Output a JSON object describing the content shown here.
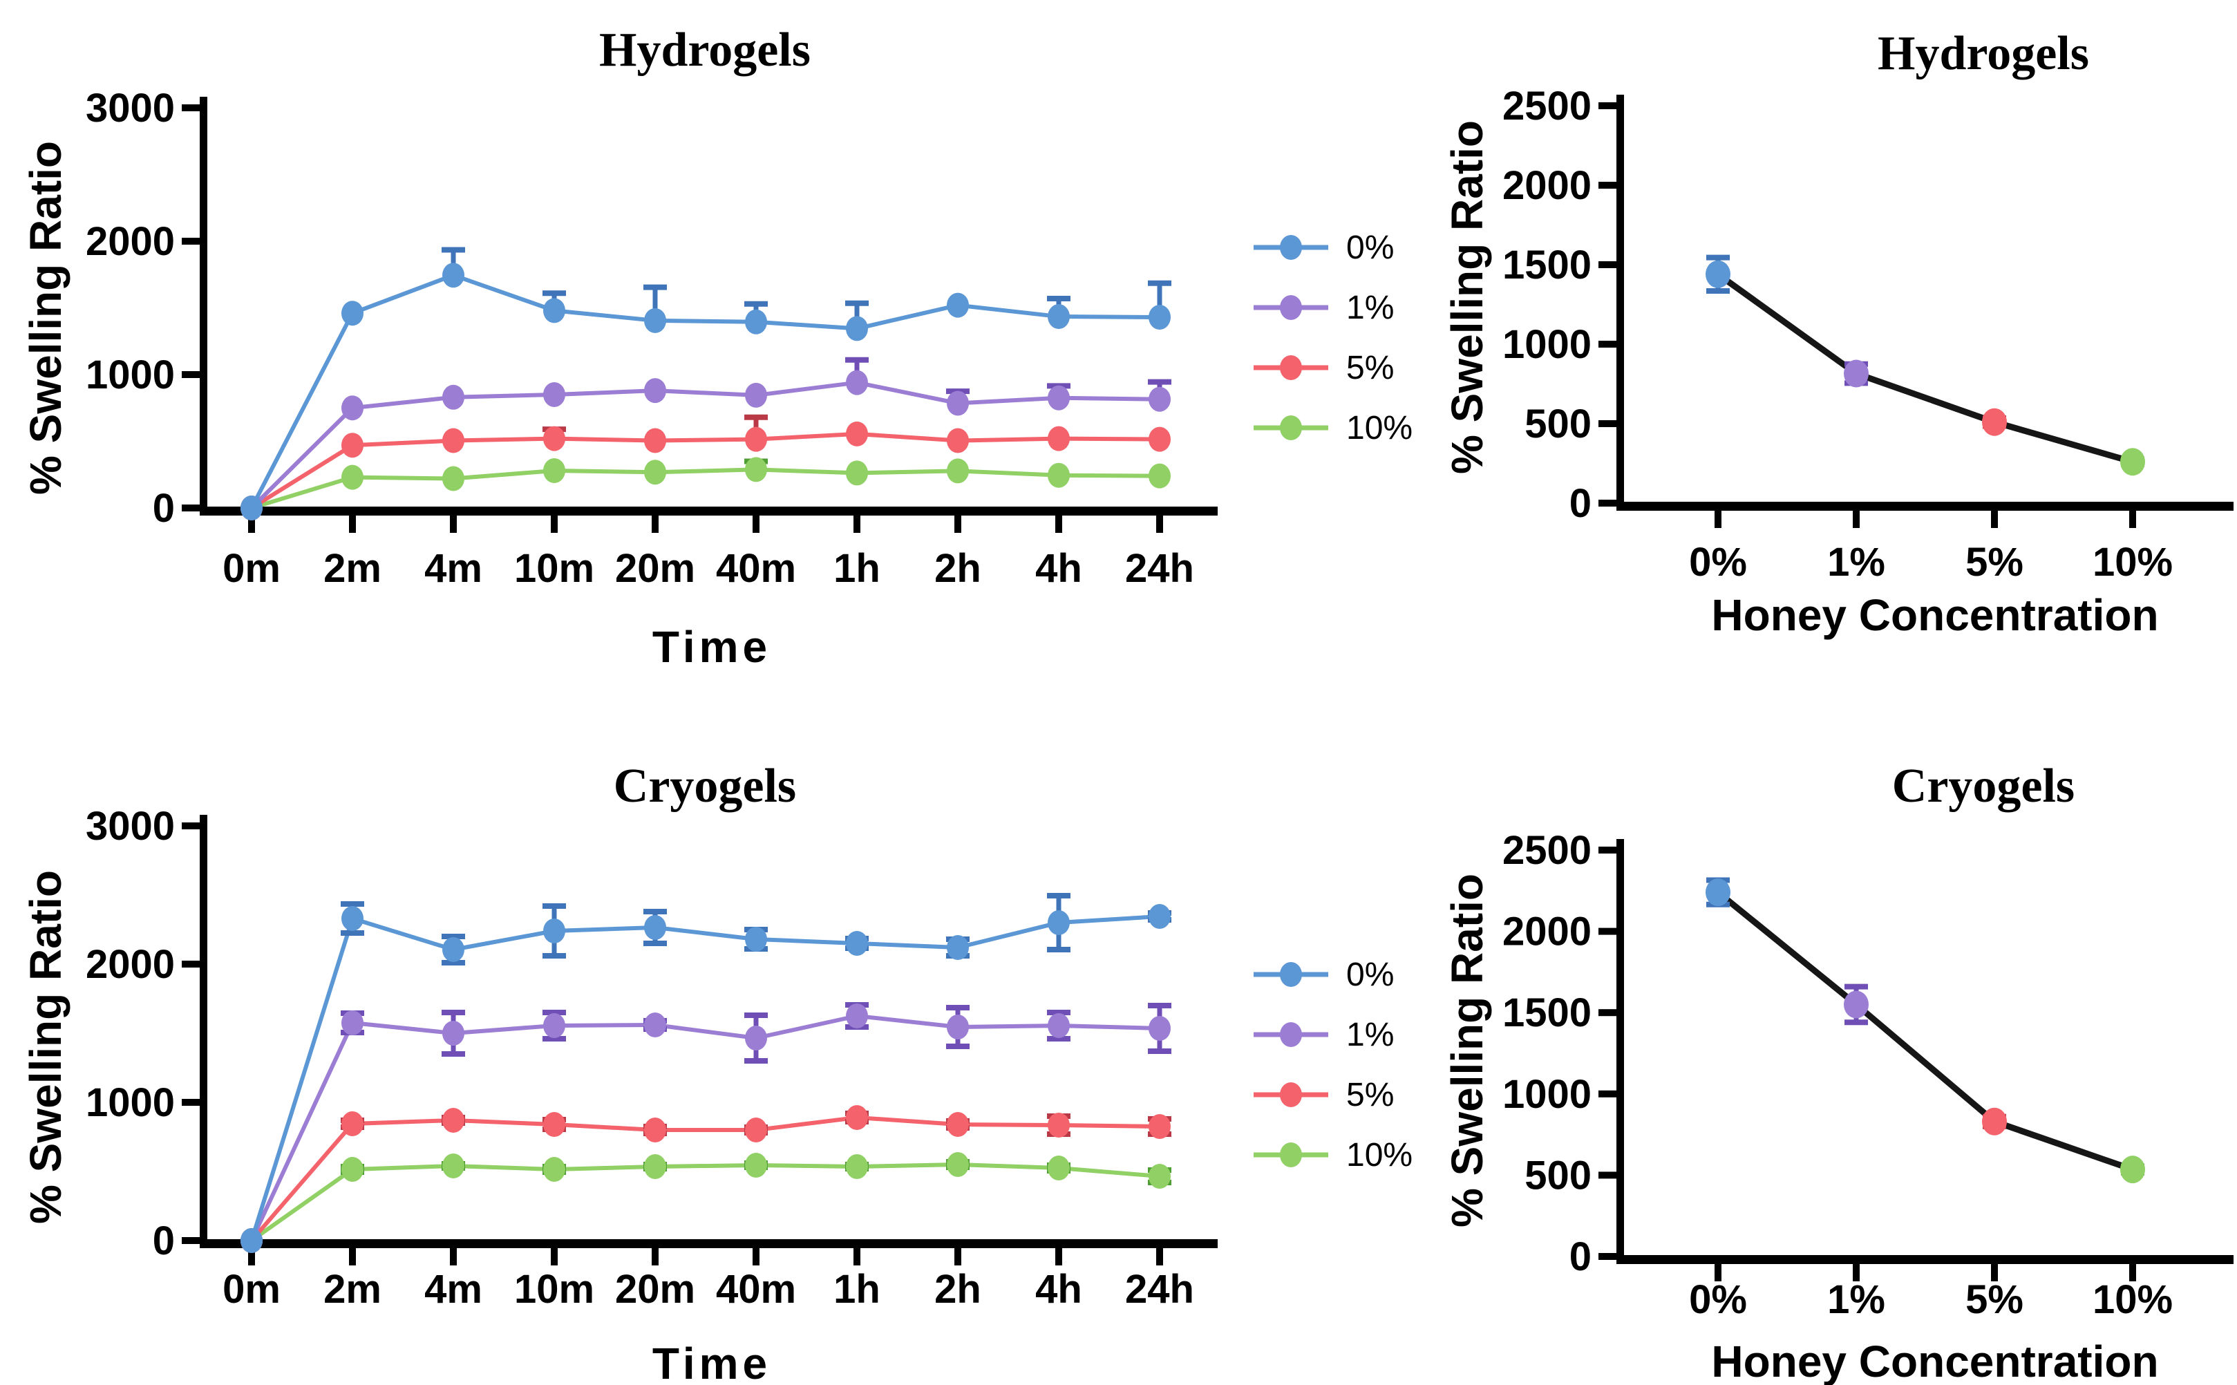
{
  "page": {
    "background": "#ffffff"
  },
  "colors": {
    "series_0pct": "#5B96D5",
    "series_1pct": "#9B7DD4",
    "series_5pct": "#F4626B",
    "series_10pct": "#90D065",
    "axis": "#000000",
    "concentration_line": "#161616"
  },
  "legend": {
    "items": [
      {
        "label": "0%",
        "color": "#5B96D5"
      },
      {
        "label": "1%",
        "color": "#9B7DD4"
      },
      {
        "label": "5%",
        "color": "#F4626B"
      },
      {
        "label": "10%",
        "color": "#90D065"
      }
    ]
  },
  "chart_data": [
    {
      "id": "hydrogels-time",
      "type": "line",
      "title": "Hydrogels",
      "xlabel": "Time",
      "ylabel": "% Swelling Ratio",
      "categories": [
        "0m",
        "2m",
        "4m",
        "10m",
        "20m",
        "40m",
        "1h",
        "2h",
        "4h",
        "24h"
      ],
      "ylim": [
        0,
        3000
      ],
      "yticks": [
        0,
        1000,
        2000,
        3000
      ],
      "grid": false,
      "legend_position": "right",
      "error_dir": "up",
      "series": [
        {
          "name": "0%",
          "color": "#5B96D5",
          "error_color": "#3F74B8",
          "values": [
            0,
            1460,
            1745,
            1480,
            1405,
            1395,
            1345,
            1520,
            1435,
            1430
          ],
          "errors": [
            0,
            0,
            190,
            130,
            250,
            135,
            190,
            0,
            135,
            255
          ]
        },
        {
          "name": "1%",
          "color": "#9B7DD4",
          "error_color": "#6F4FB5",
          "values": [
            0,
            750,
            830,
            850,
            880,
            845,
            940,
            785,
            825,
            815
          ],
          "errors": [
            0,
            0,
            0,
            0,
            0,
            0,
            170,
            90,
            90,
            130
          ]
        },
        {
          "name": "5%",
          "color": "#F4626B",
          "error_color": "#B93A46",
          "values": [
            0,
            470,
            505,
            520,
            505,
            515,
            555,
            505,
            520,
            515
          ],
          "errors": [
            0,
            0,
            0,
            70,
            0,
            165,
            0,
            0,
            0,
            0
          ]
        },
        {
          "name": "10%",
          "color": "#90D065",
          "error_color": "#4F9E33",
          "values": [
            0,
            230,
            220,
            280,
            268,
            288,
            262,
            278,
            245,
            240
          ],
          "errors": [
            0,
            0,
            0,
            0,
            0,
            62,
            0,
            0,
            0,
            0
          ]
        }
      ]
    },
    {
      "id": "hydrogels-concentration",
      "type": "line",
      "title": "Hydrogels",
      "xlabel": "Honey Concentration",
      "ylabel": "% Swelling Ratio",
      "categories": [
        "0%",
        "1%",
        "5%",
        "10%"
      ],
      "ylim": [
        0,
        2500
      ],
      "yticks": [
        0,
        500,
        1000,
        1500,
        2000,
        2500
      ],
      "grid": false,
      "error_dir": "both",
      "line_color": "#161616",
      "series": [
        {
          "name": "swelling-vs-honey-concentration",
          "color": "#161616",
          "point_colors": [
            "#5B96D5",
            "#9B7DD4",
            "#F4626B",
            "#90D065"
          ],
          "point_error_colors": [
            "#3F74B8",
            "#6F4FB5",
            "#B93A46",
            "#4F9E33"
          ],
          "values": [
            1440,
            815,
            510,
            260
          ],
          "errors": [
            105,
            60,
            25,
            15
          ]
        }
      ]
    },
    {
      "id": "cryogels-time",
      "type": "line",
      "title": "Cryogels",
      "xlabel": "Time",
      "ylabel": "% Swelling Ratio",
      "categories": [
        "0m",
        "2m",
        "4m",
        "10m",
        "20m",
        "40m",
        "1h",
        "2h",
        "4h",
        "24h"
      ],
      "ylim": [
        0,
        3000
      ],
      "yticks": [
        0,
        1000,
        2000,
        3000
      ],
      "grid": false,
      "legend_position": "right",
      "error_dir": "both",
      "series": [
        {
          "name": "0%",
          "color": "#5B96D5",
          "error_color": "#3F74B8",
          "values": [
            0,
            2330,
            2105,
            2240,
            2265,
            2180,
            2150,
            2120,
            2300,
            2345
          ],
          "errors": [
            0,
            105,
            95,
            180,
            115,
            70,
            35,
            60,
            195,
            25
          ]
        },
        {
          "name": "1%",
          "color": "#9B7DD4",
          "error_color": "#6F4FB5",
          "values": [
            0,
            1575,
            1500,
            1555,
            1560,
            1465,
            1625,
            1545,
            1555,
            1535
          ],
          "errors": [
            0,
            70,
            150,
            95,
            30,
            165,
            80,
            140,
            95,
            165
          ]
        },
        {
          "name": "5%",
          "color": "#F4626B",
          "error_color": "#B93A46",
          "values": [
            0,
            845,
            870,
            840,
            800,
            800,
            890,
            840,
            835,
            825
          ],
          "errors": [
            0,
            25,
            20,
            35,
            25,
            20,
            30,
            25,
            65,
            55
          ]
        },
        {
          "name": "10%",
          "color": "#90D065",
          "error_color": "#4F9E33",
          "values": [
            0,
            515,
            540,
            515,
            535,
            545,
            535,
            550,
            525,
            465
          ],
          "errors": [
            0,
            20,
            15,
            20,
            15,
            15,
            15,
            20,
            20,
            45
          ]
        }
      ]
    },
    {
      "id": "cryogels-concentration",
      "type": "line",
      "title": "Cryogels",
      "xlabel": "Honey Concentration",
      "ylabel": "% Swelling Ratio",
      "categories": [
        "0%",
        "1%",
        "5%",
        "10%"
      ],
      "ylim": [
        0,
        2500
      ],
      "yticks": [
        0,
        500,
        1000,
        1500,
        2000,
        2500
      ],
      "grid": false,
      "error_dir": "both",
      "line_color": "#161616",
      "series": [
        {
          "name": "swelling-vs-honey-concentration",
          "color": "#161616",
          "point_colors": [
            "#5B96D5",
            "#9B7DD4",
            "#F4626B",
            "#90D065"
          ],
          "point_error_colors": [
            "#3F74B8",
            "#6F4FB5",
            "#B93A46",
            "#4F9E33"
          ],
          "values": [
            2240,
            1550,
            830,
            535
          ],
          "errors": [
            75,
            110,
            30,
            20
          ]
        }
      ]
    }
  ]
}
